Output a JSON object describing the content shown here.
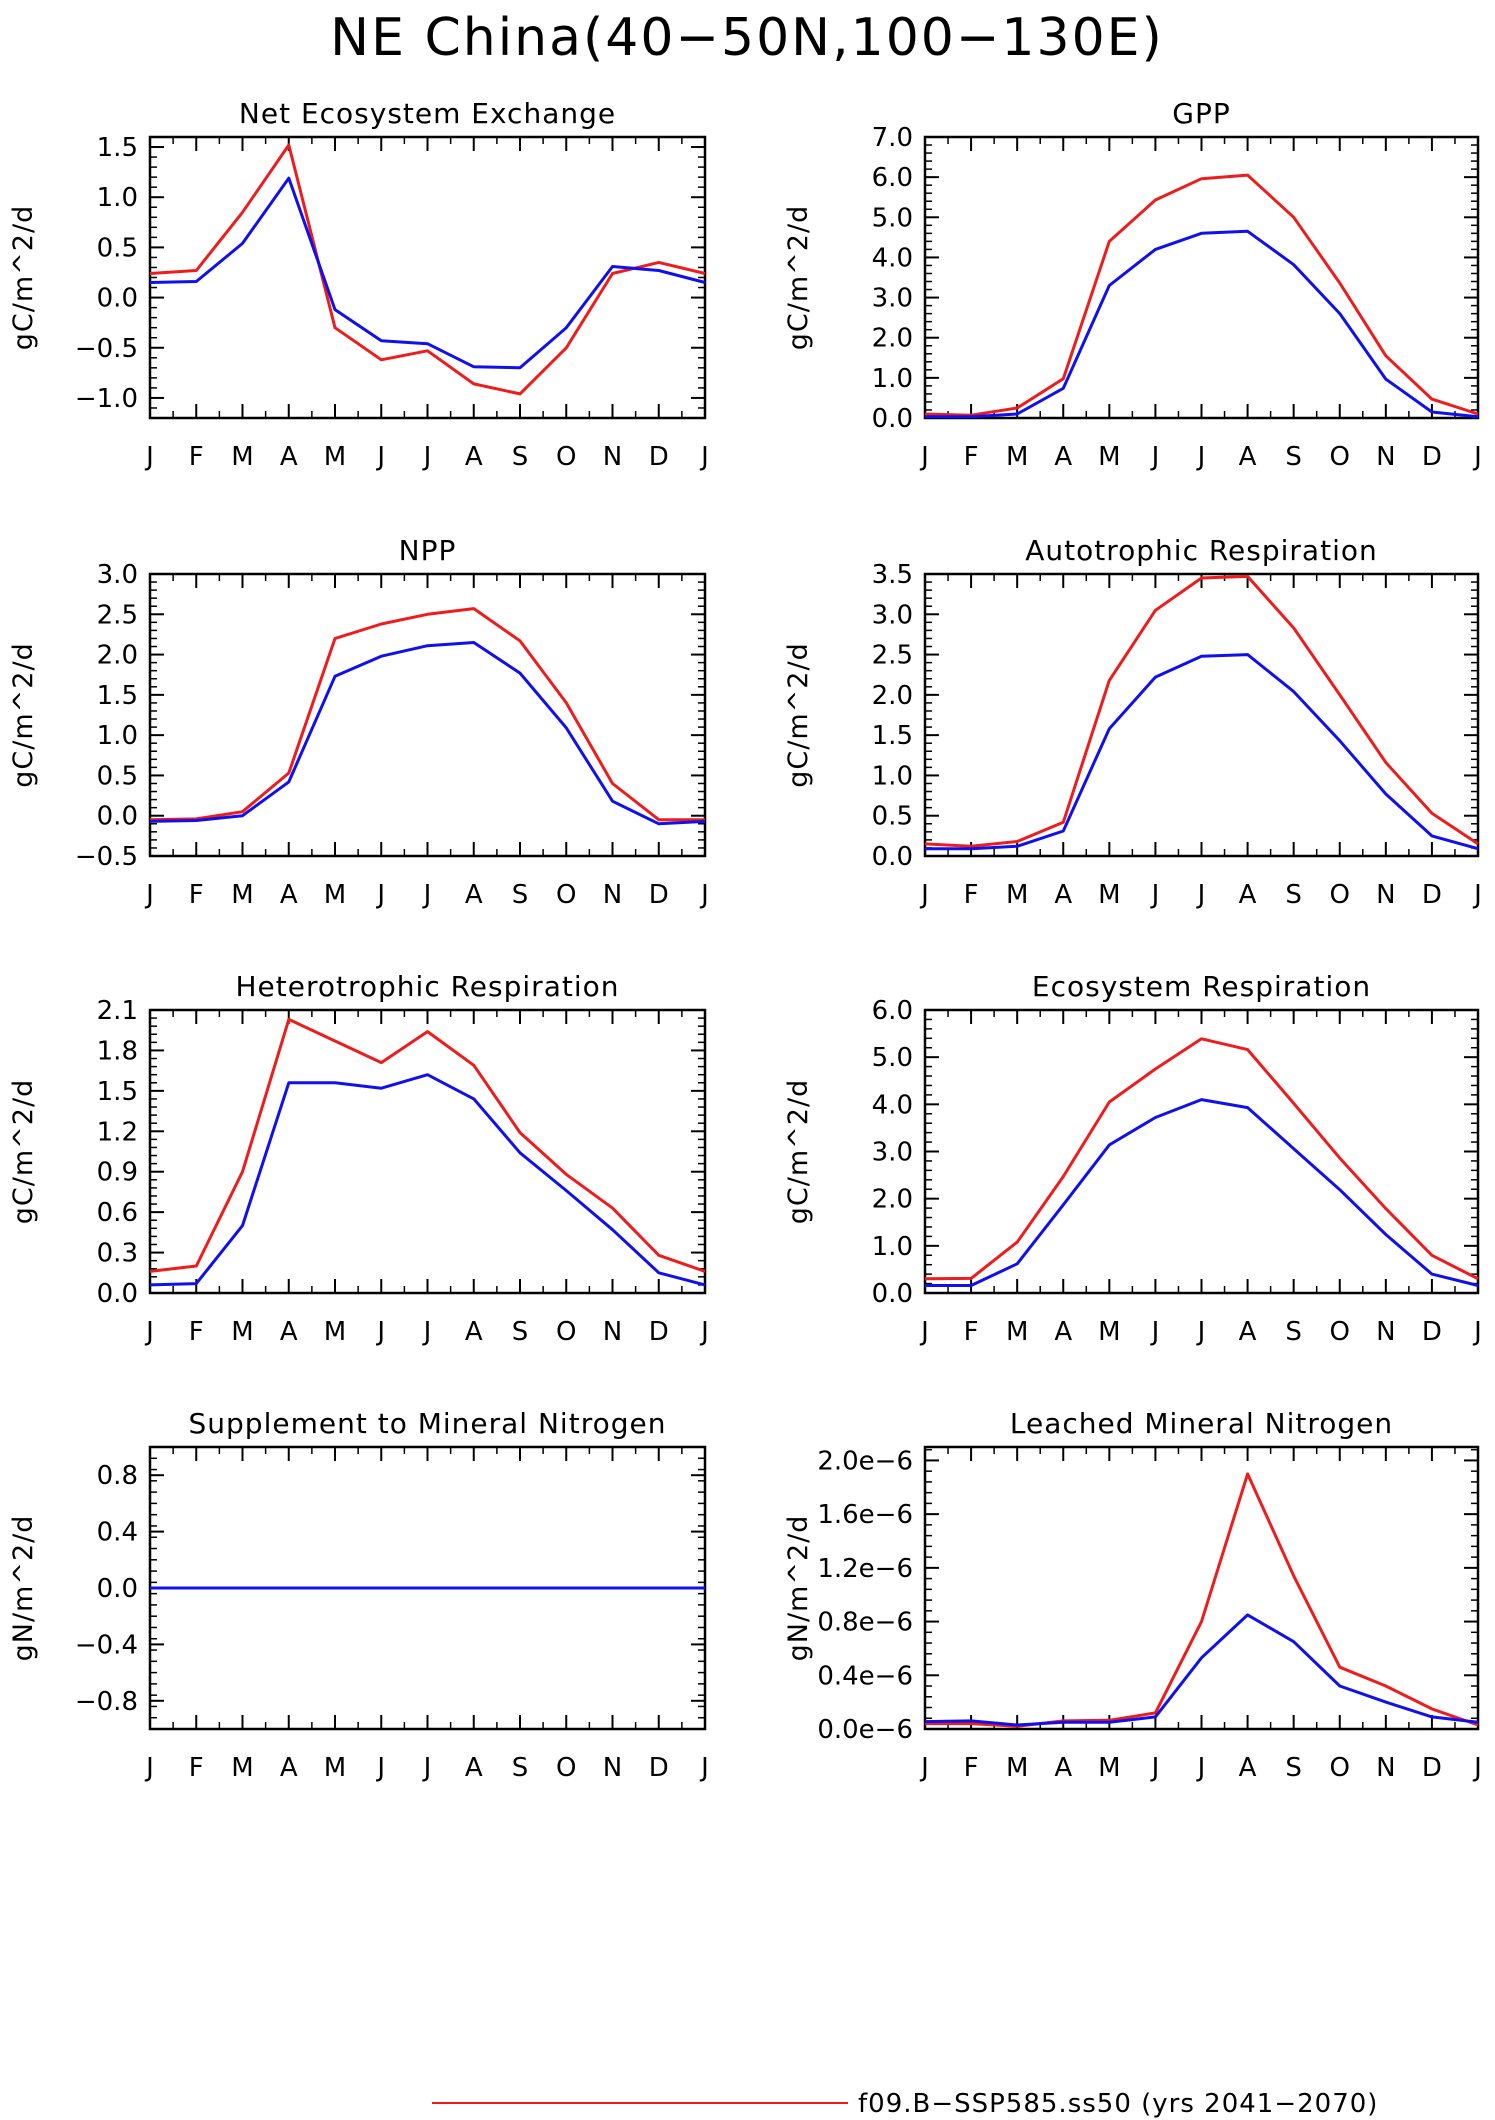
{
  "figure": {
    "title": "NE China(40−50N,100−130E)",
    "legend": {
      "label": "f09.B−SSP585.ss50 (yrs 2041−2070)",
      "color": "#ee1c1c"
    }
  },
  "colors": {
    "red": "#ee1c1c",
    "blue": "#1010ee"
  },
  "chart_data": [
    {
      "type": "line",
      "title": "Net Ecosystem Exchange",
      "ylabel": "gC/m^2/d",
      "categories": [
        "J",
        "F",
        "M",
        "A",
        "M",
        "J",
        "J",
        "A",
        "S",
        "O",
        "N",
        "D",
        "J"
      ],
      "ylim": [
        -1.2,
        1.6
      ],
      "yticks": [
        -1.0,
        -0.5,
        0.0,
        0.5,
        1.0,
        1.5
      ],
      "ytick_labels": [
        "−1.0",
        "−0.5",
        "0.0",
        "0.5",
        "1.0",
        "1.5"
      ],
      "series": [
        {
          "color": "#ee1c1c",
          "values": [
            0.24,
            0.27,
            0.85,
            1.52,
            -0.3,
            -0.62,
            -0.53,
            -0.86,
            -0.96,
            -0.5,
            0.24,
            0.35,
            0.24
          ]
        },
        {
          "color": "#1010ee",
          "values": [
            0.15,
            0.16,
            0.54,
            1.19,
            -0.12,
            -0.43,
            -0.46,
            -0.69,
            -0.7,
            -0.3,
            0.31,
            0.27,
            0.15
          ]
        }
      ]
    },
    {
      "type": "line",
      "title": "GPP",
      "ylabel": "gC/m^2/d",
      "categories": [
        "J",
        "F",
        "M",
        "A",
        "M",
        "J",
        "J",
        "A",
        "S",
        "O",
        "N",
        "D",
        "J"
      ],
      "ylim": [
        0,
        7
      ],
      "yticks": [
        0,
        1,
        2,
        3,
        4,
        5,
        6,
        7
      ],
      "ytick_labels": [
        "0.0",
        "1.0",
        "2.0",
        "3.0",
        "4.0",
        "5.0",
        "6.0",
        "7.0"
      ],
      "series": [
        {
          "color": "#ee1c1c",
          "values": [
            0.1,
            0.07,
            0.25,
            0.98,
            4.4,
            5.43,
            5.96,
            6.05,
            5.0,
            3.36,
            1.55,
            0.47,
            0.1
          ]
        },
        {
          "color": "#1010ee",
          "values": [
            0.03,
            0.03,
            0.1,
            0.74,
            3.3,
            4.2,
            4.6,
            4.65,
            3.82,
            2.6,
            0.97,
            0.15,
            0.03
          ]
        }
      ]
    },
    {
      "type": "line",
      "title": "NPP",
      "ylabel": "gC/m^2/d",
      "categories": [
        "J",
        "F",
        "M",
        "A",
        "M",
        "J",
        "J",
        "A",
        "S",
        "O",
        "N",
        "D",
        "J"
      ],
      "ylim": [
        -0.5,
        3.0
      ],
      "yticks": [
        -0.5,
        0,
        0.5,
        1.0,
        1.5,
        2.0,
        2.5,
        3.0
      ],
      "ytick_labels": [
        "−0.5",
        "0.0",
        "0.5",
        "1.0",
        "1.5",
        "2.0",
        "2.5",
        "3.0"
      ],
      "series": [
        {
          "color": "#ee1c1c",
          "values": [
            -0.05,
            -0.04,
            0.05,
            0.53,
            2.2,
            2.38,
            2.5,
            2.57,
            2.17,
            1.4,
            0.4,
            -0.05,
            -0.05
          ]
        },
        {
          "color": "#1010ee",
          "values": [
            -0.07,
            -0.06,
            0.0,
            0.42,
            1.73,
            1.98,
            2.11,
            2.15,
            1.77,
            1.09,
            0.18,
            -0.1,
            -0.07
          ]
        }
      ]
    },
    {
      "type": "line",
      "title": "Autotrophic Respiration",
      "ylabel": "gC/m^2/d",
      "categories": [
        "J",
        "F",
        "M",
        "A",
        "M",
        "J",
        "J",
        "A",
        "S",
        "O",
        "N",
        "D",
        "J"
      ],
      "ylim": [
        0,
        3.5
      ],
      "yticks": [
        0,
        0.5,
        1.0,
        1.5,
        2.0,
        2.5,
        3.0,
        3.5
      ],
      "ytick_labels": [
        "0.0",
        "0.5",
        "1.0",
        "1.5",
        "2.0",
        "2.5",
        "3.0",
        "3.5"
      ],
      "series": [
        {
          "color": "#ee1c1c",
          "values": [
            0.15,
            0.12,
            0.18,
            0.42,
            2.18,
            3.05,
            3.45,
            3.47,
            2.83,
            2.0,
            1.16,
            0.53,
            0.15
          ]
        },
        {
          "color": "#1010ee",
          "values": [
            0.09,
            0.09,
            0.12,
            0.31,
            1.58,
            2.22,
            2.48,
            2.5,
            2.04,
            1.43,
            0.77,
            0.25,
            0.09
          ]
        }
      ]
    },
    {
      "type": "line",
      "title": "Heterotrophic Respiration",
      "ylabel": "gC/m^2/d",
      "categories": [
        "J",
        "F",
        "M",
        "A",
        "M",
        "J",
        "J",
        "A",
        "S",
        "O",
        "N",
        "D",
        "J"
      ],
      "ylim": [
        0,
        2.1
      ],
      "yticks": [
        0,
        0.3,
        0.6,
        0.9,
        1.2,
        1.5,
        1.8,
        2.1
      ],
      "ytick_labels": [
        "0.0",
        "0.3",
        "0.6",
        "0.9",
        "1.2",
        "1.5",
        "1.8",
        "2.1"
      ],
      "series": [
        {
          "color": "#ee1c1c",
          "values": [
            0.16,
            0.2,
            0.9,
            2.03,
            1.87,
            1.71,
            1.94,
            1.69,
            1.19,
            0.88,
            0.63,
            0.28,
            0.16
          ]
        },
        {
          "color": "#1010ee",
          "values": [
            0.06,
            0.07,
            0.5,
            1.56,
            1.56,
            1.52,
            1.62,
            1.44,
            1.04,
            0.76,
            0.47,
            0.15,
            0.06
          ]
        }
      ]
    },
    {
      "type": "line",
      "title": "Ecosystem Respiration",
      "ylabel": "gC/m^2/d",
      "categories": [
        "J",
        "F",
        "M",
        "A",
        "M",
        "J",
        "J",
        "A",
        "S",
        "O",
        "N",
        "D",
        "J"
      ],
      "ylim": [
        0,
        6
      ],
      "yticks": [
        0,
        1,
        2,
        3,
        4,
        5,
        6
      ],
      "ytick_labels": [
        "0.0",
        "1.0",
        "2.0",
        "3.0",
        "4.0",
        "5.0",
        "6.0"
      ],
      "series": [
        {
          "color": "#ee1c1c",
          "values": [
            0.3,
            0.31,
            1.08,
            2.47,
            4.05,
            4.75,
            5.39,
            5.16,
            4.02,
            2.86,
            1.79,
            0.8,
            0.3
          ]
        },
        {
          "color": "#1010ee",
          "values": [
            0.16,
            0.16,
            0.62,
            1.87,
            3.14,
            3.72,
            4.1,
            3.93,
            3.06,
            2.19,
            1.24,
            0.4,
            0.16
          ]
        }
      ]
    },
    {
      "type": "line",
      "title": "Supplement to Mineral Nitrogen",
      "ylabel": "gN/m^2/d",
      "categories": [
        "J",
        "F",
        "M",
        "A",
        "M",
        "J",
        "J",
        "A",
        "S",
        "O",
        "N",
        "D",
        "J"
      ],
      "ylim": [
        -1.0,
        1.0
      ],
      "yticks": [
        -0.8,
        -0.4,
        0.0,
        0.4,
        0.8
      ],
      "ytick_labels": [
        "−0.8",
        "−0.4",
        "0.0",
        "0.4",
        "0.8"
      ],
      "series": [
        {
          "color": "#ee1c1c",
          "values": [
            0,
            0,
            0,
            0,
            0,
            0,
            0,
            0,
            0,
            0,
            0,
            0,
            0
          ]
        },
        {
          "color": "#1010ee",
          "values": [
            0,
            0,
            0,
            0,
            0,
            0,
            0,
            0,
            0,
            0,
            0,
            0,
            0
          ]
        }
      ]
    },
    {
      "type": "line",
      "title": "Leached Mineral Nitrogen",
      "ylabel": "gN/m^2/d",
      "categories": [
        "J",
        "F",
        "M",
        "A",
        "M",
        "J",
        "J",
        "A",
        "S",
        "O",
        "N",
        "D",
        "J"
      ],
      "ylim": [
        0,
        2.1e-06
      ],
      "yticks": [
        0,
        4e-07,
        8e-07,
        1.2e-06,
        1.6e-06,
        2e-06
      ],
      "ytick_labels": [
        "0.0e−6",
        "0.4e−6",
        "0.8e−6",
        "1.2e−6",
        "1.6e−6",
        "2.0e−6"
      ],
      "series": [
        {
          "color": "#ee1c1c",
          "values": [
            4e-08,
            4e-08,
            2e-08,
            6e-08,
            6.5e-08,
            1.2e-07,
            8e-07,
            1.9e-06,
            1.14e-06,
            4.6e-07,
            3.2e-07,
            1.5e-07,
            3e-08
          ]
        },
        {
          "color": "#1010ee",
          "values": [
            5.5e-08,
            6e-08,
            3e-08,
            5e-08,
            5e-08,
            9e-08,
            5.3e-07,
            8.5e-07,
            6.5e-07,
            3.2e-07,
            2e-07,
            9e-08,
            5e-08
          ]
        }
      ]
    }
  ]
}
